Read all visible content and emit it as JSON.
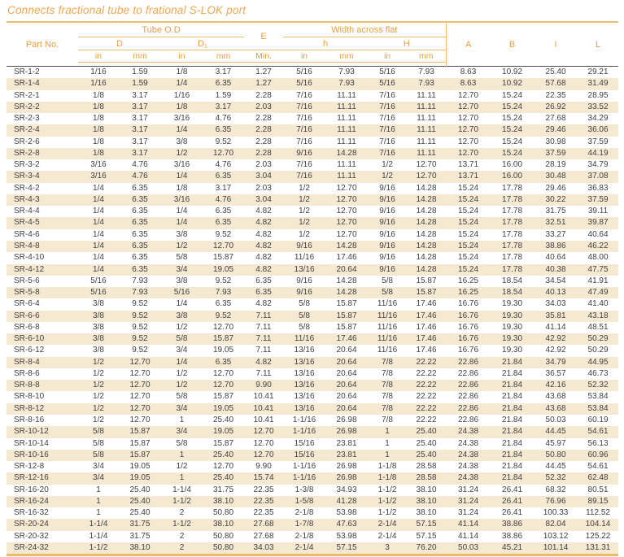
{
  "title": "Connects fractional tube to frational S-LOK port",
  "colors": {
    "accent_text": "#E89F3C",
    "title_text": "#F1A64F",
    "gold_line": "#EABD6E",
    "row_stripe": "#F6E9D2",
    "data_text": "#414042",
    "dark_rule": "#4D4D4F"
  },
  "table": {
    "header": {
      "part_no": "Part No.",
      "tube_od": "Tube O.D",
      "d": "D",
      "d1_base": "D",
      "d1_sub": "1",
      "e": "E",
      "width_across_flat": "Width across flat",
      "h": "h",
      "h_cap": "H",
      "a": "A",
      "b": "B",
      "i": "I",
      "l": "L",
      "units": [
        "in",
        "mm",
        "in",
        "mm",
        "Min.",
        "in",
        "mm",
        "in",
        "mm"
      ]
    },
    "rows": [
      [
        "SR-1-2",
        "1/16",
        "1.59",
        "1/8",
        "3.17",
        "1.27",
        "5/16",
        "7.93",
        "5/16",
        "7.93",
        "8.63",
        "10.92",
        "25.40",
        "29.21"
      ],
      [
        "SR-1-4",
        "1/16",
        "1.59",
        "1/4",
        "6.35",
        "1.27",
        "5/16",
        "7.93",
        "5/16",
        "7.93",
        "8.63",
        "10.92",
        "57.68",
        "31.49"
      ],
      [
        "SR-2-1",
        "1/8",
        "3.17",
        "1/16",
        "1.59",
        "2.28",
        "7/16",
        "11.11",
        "7/16",
        "11.11",
        "12.70",
        "15.24",
        "22.35",
        "28.95"
      ],
      [
        "SR-2-2",
        "1/8",
        "3.17",
        "1/8",
        "3.17",
        "2.03",
        "7/16",
        "11.11",
        "7/16",
        "11.11",
        "12.70",
        "15.24",
        "26.92",
        "33.52"
      ],
      [
        "SR-2-3",
        "1/8",
        "3.17",
        "3/16",
        "4.76",
        "2.28",
        "7/16",
        "11.11",
        "7/16",
        "11.11",
        "12.70",
        "15.24",
        "27.68",
        "34.29"
      ],
      [
        "SR-2-4",
        "1/8",
        "3.17",
        "1/4",
        "6.35",
        "2.28",
        "7/16",
        "11.11",
        "7/16",
        "11.11",
        "12.70",
        "15.24",
        "29.46",
        "36.06"
      ],
      [
        "SR-2-6",
        "1/8",
        "3.17",
        "3/8",
        "9.52",
        "2.28",
        "7/16",
        "11.11",
        "7/16",
        "11.11",
        "12.70",
        "15.24",
        "30.98",
        "37.59"
      ],
      [
        "SR-2-8",
        "1/8",
        "3.17",
        "1/2",
        "12.70",
        "2.28",
        "9/16",
        "14.28",
        "7/16",
        "11.11",
        "12.70",
        "15.24",
        "37.59",
        "44.19"
      ],
      [
        "SR-3-2",
        "3/16",
        "4.76",
        "3/16",
        "4.76",
        "2.03",
        "7/16",
        "11.11",
        "1/2",
        "12.70",
        "13.71",
        "16.00",
        "28.19",
        "34.79"
      ],
      [
        "SR-3-4",
        "3/16",
        "4.76",
        "1/4",
        "6.35",
        "3.04",
        "7/16",
        "11.11",
        "1/2",
        "12.70",
        "13.71",
        "16.00",
        "30.48",
        "37.08"
      ],
      [
        "SR-4-2",
        "1/4",
        "6.35",
        "1/8",
        "3.17",
        "2.03",
        "1/2",
        "12.70",
        "9/16",
        "14.28",
        "15.24",
        "17.78",
        "29.46",
        "36.83"
      ],
      [
        "SR-4-3",
        "1/4",
        "6.35",
        "3/16",
        "4.76",
        "3.04",
        "1/2",
        "12.70",
        "9/16",
        "14.28",
        "15.24",
        "17.78",
        "30.22",
        "37.59"
      ],
      [
        "SR-4-4",
        "1/4",
        "6.35",
        "1/4",
        "6.35",
        "4.82",
        "1/2",
        "12.70",
        "9/16",
        "14.28",
        "15.24",
        "17.78",
        "31.75",
        "39.11"
      ],
      [
        "SR-4-5",
        "1/4",
        "6.35",
        "1/4",
        "6.35",
        "4.82",
        "1/2",
        "12.70",
        "9/16",
        "14.28",
        "15.24",
        "17.78",
        "32.51",
        "39.87"
      ],
      [
        "SR-4-6",
        "1/4",
        "6.35",
        "3/8",
        "9.52",
        "4.82",
        "1/2",
        "12.70",
        "9/16",
        "14.28",
        "15.24",
        "17.78",
        "33.27",
        "40.64"
      ],
      [
        "SR-4-8",
        "1/4",
        "6.35",
        "1/2",
        "12.70",
        "4.82",
        "9/16",
        "14.28",
        "9/16",
        "14.28",
        "15.24",
        "17.78",
        "38.86",
        "46.22"
      ],
      [
        "SR-4-10",
        "1/4",
        "6.35",
        "5/8",
        "15.87",
        "4.82",
        "11/16",
        "17.46",
        "9/16",
        "14.28",
        "15.24",
        "17.78",
        "40.64",
        "48.00"
      ],
      [
        "SR-4-12",
        "1/4",
        "6.35",
        "3/4",
        "19.05",
        "4.82",
        "13/16",
        "20.64",
        "9/16",
        "14.28",
        "15.24",
        "17.78",
        "40.38",
        "47.75"
      ],
      [
        "SR-5-6",
        "5/16",
        "7.93",
        "3/8",
        "9.52",
        "6.35",
        "9/16",
        "14.28",
        "5/8",
        "15.87",
        "16.25",
        "18.54",
        "34.54",
        "41.91"
      ],
      [
        "SR-5-8",
        "5/16",
        "7.93",
        "5/16",
        "7.93",
        "6.35",
        "9/16",
        "14.28",
        "5/8",
        "15.87",
        "16.25",
        "18.54",
        "40.13",
        "47.49"
      ],
      [
        "SR-6-4",
        "3/8",
        "9.52",
        "1/4",
        "6.35",
        "4.82",
        "5/8",
        "15.87",
        "11/16",
        "17.46",
        "16.76",
        "19.30",
        "34.03",
        "41.40"
      ],
      [
        "SR-6-6",
        "3/8",
        "9.52",
        "3/8",
        "9.52",
        "7.11",
        "5/8",
        "15.87",
        "11/16",
        "17.46",
        "16.76",
        "19.30",
        "35.81",
        "43.18"
      ],
      [
        "SR-6-8",
        "3/8",
        "9.52",
        "1/2",
        "12.70",
        "7.11",
        "5/8",
        "15.87",
        "11/16",
        "17.46",
        "16.76",
        "19.30",
        "41.14",
        "48.51"
      ],
      [
        "SR-6-10",
        "3/8",
        "9.52",
        "5/8",
        "15.87",
        "7.11",
        "11/16",
        "17.46",
        "11/16",
        "17.46",
        "16.76",
        "19.30",
        "42.92",
        "50.29"
      ],
      [
        "SR-6-12",
        "3/8",
        "9.52",
        "3/4",
        "19.05",
        "7.11",
        "13/16",
        "20.64",
        "11/16",
        "17.46",
        "16.76",
        "19.30",
        "42.92",
        "50.29"
      ],
      [
        "SR-8-4",
        "1/2",
        "12.70",
        "1/4",
        "6.35",
        "4.82",
        "13/16",
        "20.64",
        "7/8",
        "22.22",
        "22.86",
        "21.84",
        "34.79",
        "44.95"
      ],
      [
        "SR-8-6",
        "1/2",
        "12.70",
        "1/2",
        "12.70",
        "7.11",
        "13/16",
        "20.64",
        "7/8",
        "22.22",
        "22.86",
        "21.84",
        "36.57",
        "46.73"
      ],
      [
        "SR-8-8",
        "1/2",
        "12.70",
        "1/2",
        "12.70",
        "9.90",
        "13/16",
        "20.64",
        "7/8",
        "22.22",
        "22.86",
        "21.84",
        "42.16",
        "52.32"
      ],
      [
        "SR-8-10",
        "1/2",
        "12.70",
        "5/8",
        "15.87",
        "10.41",
        "13/16",
        "20.64",
        "7/8",
        "22.22",
        "22.86",
        "21.84",
        "43.68",
        "53.84"
      ],
      [
        "SR-8-12",
        "1/2",
        "12.70",
        "3/4",
        "19.05",
        "10.41",
        "13/16",
        "20.64",
        "7/8",
        "22.22",
        "22.86",
        "21.84",
        "43.68",
        "53.84"
      ],
      [
        "SR-8-16",
        "1/2",
        "12.70",
        "1",
        "25.40",
        "10.41",
        "1-1/16",
        "26.98",
        "7/8",
        "22.22",
        "22.86",
        "21.84",
        "50.03",
        "60.19"
      ],
      [
        "SR-10-12",
        "5/8",
        "15.87",
        "3/4",
        "19.05",
        "12.70",
        "1-1/16",
        "26.98",
        "1",
        "25.40",
        "24.38",
        "21.84",
        "44.45",
        "54.61"
      ],
      [
        "SR-10-14",
        "5/8",
        "15.87",
        "5/8",
        "15.87",
        "12.70",
        "15/16",
        "23.81",
        "1",
        "25.40",
        "24.38",
        "21.84",
        "45.97",
        "56.13"
      ],
      [
        "SR-10-16",
        "5/8",
        "15.87",
        "1",
        "25.40",
        "12.70",
        "15/16",
        "23.81",
        "1",
        "25.40",
        "24.38",
        "21.84",
        "50.80",
        "60.96"
      ],
      [
        "SR-12-8",
        "3/4",
        "19.05",
        "1/2",
        "12.70",
        "9.90",
        "1-1/16",
        "26.98",
        "1-1/8",
        "28.58",
        "24.38",
        "21.84",
        "44.45",
        "54.61"
      ],
      [
        "SR-12-16",
        "3/4",
        "19.05",
        "1",
        "25.40",
        "15.74",
        "1-1/16",
        "26.98",
        "1-1/8",
        "28.58",
        "24.38",
        "21.84",
        "52.32",
        "62.48"
      ],
      [
        "SR-16-20",
        "1",
        "25.40",
        "1-1/4",
        "31.75",
        "22.35",
        "1-3/8",
        "34.93",
        "1-1/2",
        "38.10",
        "31.24",
        "26.41",
        "68.32",
        "80.51"
      ],
      [
        "SR-16-24",
        "1",
        "25.40",
        "1-1/2",
        "38.10",
        "22.35",
        "1-5/8",
        "41.28",
        "1-1/2",
        "38.10",
        "31.24",
        "26.41",
        "76.96",
        "89.15"
      ],
      [
        "SR-16-32",
        "1",
        "25.40",
        "2",
        "50.80",
        "22.35",
        "2-1/8",
        "53.98",
        "1-1/2",
        "38.10",
        "31.24",
        "26.41",
        "100.33",
        "112.52"
      ],
      [
        "SR-20-24",
        "1-1/4",
        "31.75",
        "1-1/2",
        "38.10",
        "27.68",
        "1-7/8",
        "47.63",
        "2-1/4",
        "57.15",
        "41.14",
        "38.86",
        "82.04",
        "104.14"
      ],
      [
        "SR-20-32",
        "1-1/4",
        "31.75",
        "2",
        "50.80",
        "27.68",
        "2-1/8",
        "53.98",
        "2-1/4",
        "57.15",
        "41.14",
        "38.86",
        "103.12",
        "125.22"
      ],
      [
        "SR-24-32",
        "1-1/2",
        "38.10",
        "2",
        "50.80",
        "34.03",
        "2-1/4",
        "57.15",
        "3",
        "76.20",
        "50.03",
        "45.21",
        "101.14",
        "131.31"
      ]
    ]
  }
}
